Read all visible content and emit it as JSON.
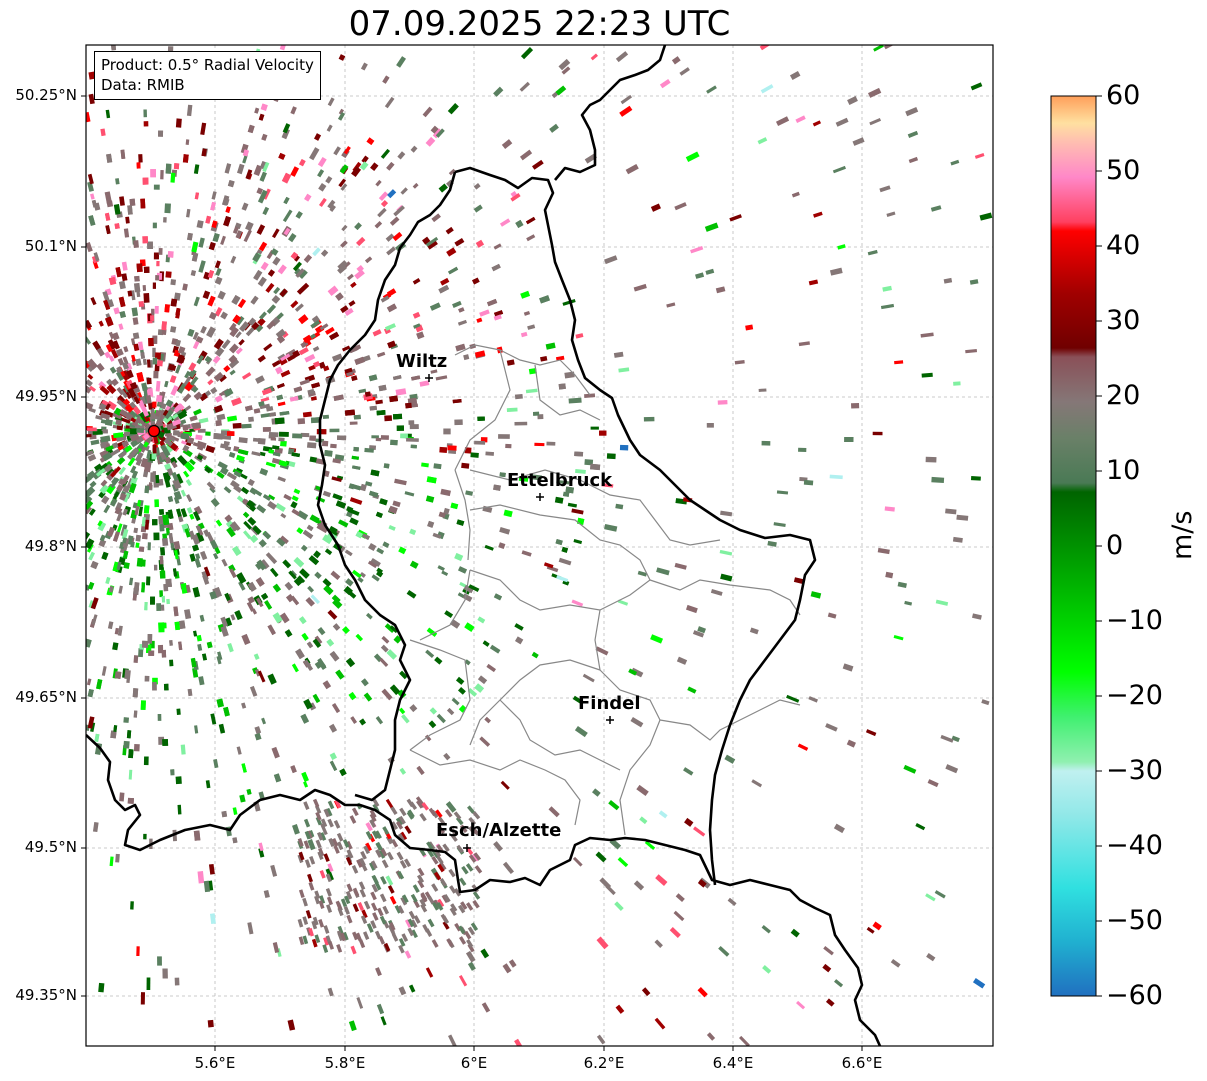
{
  "title": "07.09.2025 22:23 UTC",
  "info": {
    "product": "Product: 0.5° Radial Velocity",
    "data": "Data: RMIB"
  },
  "lat_ticks": [
    "50.25°N",
    "50.1°N",
    "49.95°N",
    "49.8°N",
    "49.65°N",
    "49.5°N",
    "49.35°N"
  ],
  "lon_ticks": [
    "5.6°E",
    "5.8°E",
    "6°E",
    "6.2°E",
    "6.4°E",
    "6.6°E"
  ],
  "places": [
    {
      "name": "Wiltz"
    },
    {
      "name": "Ettelbruck"
    },
    {
      "name": "Findel"
    },
    {
      "name": "Esch/Alzette"
    }
  ],
  "colorbar": {
    "label": "m/s",
    "ticks": [
      "60",
      "50",
      "40",
      "30",
      "20",
      "10",
      "0",
      "−10",
      "−20",
      "−30",
      "−40",
      "−50",
      "−60"
    ],
    "min": -60,
    "max": 60,
    "colors": {
      "top_orange": "#ff9f5a",
      "light_orange": "#ffc88a",
      "pale": "#ffe0a0",
      "pink_light": "#ffb0c0",
      "pink": "#ff88c8",
      "red_pink": "#ff5070",
      "red": "#ff0000",
      "dark_red": "#7a0000",
      "brownish_gray": "#8a6a6e",
      "gray": "#857777",
      "gray_green": "#5a8060",
      "dark_green": "#006400",
      "green": "#00c000",
      "bright_green": "#00ff00",
      "light_green": "#80f0a0",
      "pale_cyan": "#b0f0f0",
      "cyan": "#30e0e0",
      "blue": "#2070c0"
    }
  },
  "radar_site_color": "#ff0000"
}
